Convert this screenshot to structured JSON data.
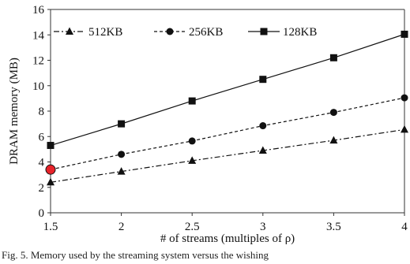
{
  "chart_data": {
    "type": "line",
    "x": [
      1.5,
      2,
      2.5,
      3,
      3.5,
      4
    ],
    "xticks": [
      "1.5",
      "2",
      "2.5",
      "3",
      "3.5",
      "4"
    ],
    "yticks": [
      "0",
      "2",
      "4",
      "6",
      "8",
      "10",
      "12",
      "14",
      "16"
    ],
    "xlim": [
      1.5,
      4
    ],
    "ylim": [
      0,
      16
    ],
    "xlabel": "# of streams (multiples of ρ)",
    "ylabel": "DRAM memory (MB)",
    "grid": false,
    "legend_position": "top",
    "series": [
      {
        "name": "512KB",
        "marker": "triangle",
        "line": "dash-dot",
        "values": [
          2.4,
          3.25,
          4.1,
          4.9,
          5.7,
          6.55
        ]
      },
      {
        "name": "256KB",
        "marker": "circle",
        "line": "dashed",
        "values": [
          3.4,
          4.6,
          5.65,
          6.85,
          7.9,
          9.05
        ]
      },
      {
        "name": "128KB",
        "marker": "square",
        "line": "solid",
        "values": [
          5.3,
          7.0,
          8.8,
          10.5,
          12.2,
          14.05
        ]
      }
    ],
    "highlight": {
      "series": "256KB",
      "x": 1.5,
      "color": "#e8232a"
    }
  },
  "caption": "Fig. 5.  Memory used by the streaming system versus the wishing"
}
